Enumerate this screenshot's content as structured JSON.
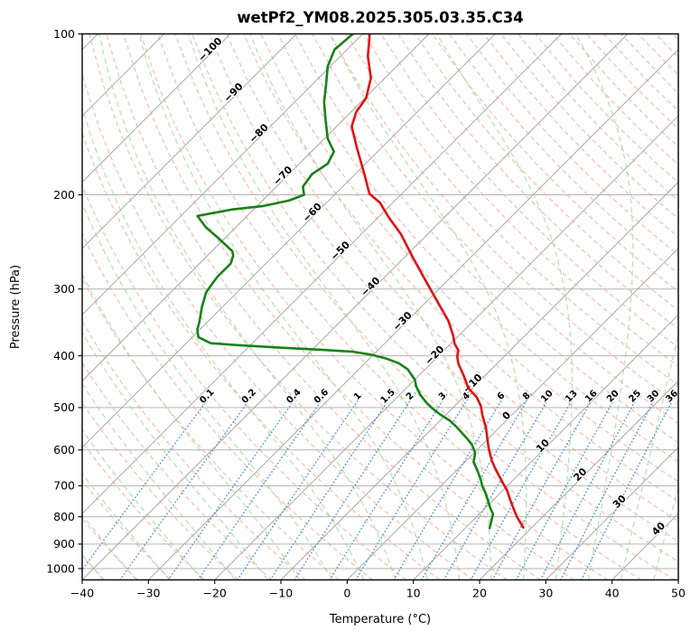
{
  "title": "wetPf2_YM08.2025.305.03.35.C34",
  "axes": {
    "xlabel": "Temperature (°C)",
    "ylabel": "Pressure (hPa)",
    "xlim": [
      -40,
      50
    ],
    "p_top": 100,
    "p_bottom": 1050,
    "x_ticks": [
      -40,
      -30,
      -20,
      -10,
      0,
      10,
      20,
      30,
      40,
      50
    ],
    "p_ticks": [
      100,
      200,
      300,
      400,
      500,
      600,
      700,
      800,
      900,
      1000
    ],
    "skew_degrees": 45
  },
  "background": {
    "isobars": [
      100,
      200,
      300,
      400,
      500,
      600,
      700,
      800,
      900,
      1000
    ],
    "isotherms": {
      "min": -120,
      "max": 50,
      "step": 10
    },
    "dry_adiabats": {
      "min": -55,
      "max": 190,
      "step": 5
    },
    "moist_adiabats": {
      "min": -55,
      "max": 50,
      "step": 5
    },
    "mixing_ratios_g_kg": [
      0.1,
      0.2,
      0.4,
      0.6,
      1,
      1.5,
      2,
      3,
      4,
      6,
      8,
      10,
      13,
      16,
      20,
      25,
      30,
      36
    ],
    "mixing_label_pressure": 480,
    "mixing_lines_top_pressure": 458,
    "isotherm_labels": [
      [
        -100,
        108
      ],
      [
        -90,
        130
      ],
      [
        -80,
        155
      ],
      [
        -70,
        186
      ],
      [
        -60,
        218
      ],
      [
        -50,
        257
      ],
      [
        -40,
        300
      ],
      [
        -30,
        348
      ],
      [
        -20,
        403
      ],
      [
        -10,
        455
      ],
      [
        0,
        523
      ],
      [
        10,
        595
      ],
      [
        20,
        674
      ],
      [
        30,
        757
      ],
      [
        40,
        851
      ]
    ]
  },
  "colors": {
    "isobar": "#b3b3b3",
    "isotherm": "#a8a8a8",
    "dry_adiabat": "#f2997f",
    "moist_adiabat": "#a5d6a2",
    "mixing_ratio": "#4a90d0",
    "label_negative": "#2878be",
    "label_zero": "#8a8a8a",
    "label_positive": "#cc3b33",
    "temperature_curve": "#e01212",
    "dewpoint_curve": "#178217",
    "spine": "#000000"
  },
  "chart_data": {
    "type": "line",
    "subtype": "skew-t-log-p-sounding",
    "title": "wetPf2_YM08.2025.305.03.35.C34",
    "xlabel": "Temperature (°C)",
    "ylabel": "Pressure (hPa)",
    "x_range_C": [
      -40,
      50
    ],
    "pressure_range_hPa": [
      100,
      1050
    ],
    "series": [
      {
        "name": "temperature",
        "color": "#e01212",
        "points_p_hPa_T_C": [
          [
            100,
            -79.0
          ],
          [
            102,
            -78.3
          ],
          [
            110,
            -75.9
          ],
          [
            121,
            -72.1
          ],
          [
            132,
            -69.8
          ],
          [
            140,
            -69.2
          ],
          [
            149,
            -67.7
          ],
          [
            163,
            -63.8
          ],
          [
            183,
            -58.6
          ],
          [
            199,
            -54.9
          ],
          [
            207,
            -51.9
          ],
          [
            220,
            -48.5
          ],
          [
            237,
            -44.0
          ],
          [
            262,
            -38.7
          ],
          [
            292,
            -32.8
          ],
          [
            324,
            -27.1
          ],
          [
            344,
            -23.8
          ],
          [
            367,
            -20.8
          ],
          [
            379,
            -19.5
          ],
          [
            391,
            -17.8
          ],
          [
            401,
            -17.1
          ],
          [
            414,
            -15.8
          ],
          [
            434,
            -13.4
          ],
          [
            460,
            -10.6
          ],
          [
            478,
            -8.0
          ],
          [
            497,
            -6.0
          ],
          [
            517,
            -4.4
          ],
          [
            544,
            -2.1
          ],
          [
            597,
            1.6
          ],
          [
            629,
            3.9
          ],
          [
            653,
            5.8
          ],
          [
            688,
            8.6
          ],
          [
            715,
            10.7
          ],
          [
            743,
            12.5
          ],
          [
            773,
            14.4
          ],
          [
            803,
            16.3
          ],
          [
            838,
            18.7
          ]
        ]
      },
      {
        "name": "dewpoint",
        "color": "#178217",
        "points_p_hPa_T_C": [
          [
            100,
            -81.5
          ],
          [
            107,
            -81.9
          ],
          [
            115,
            -80.4
          ],
          [
            124,
            -78.0
          ],
          [
            134,
            -75.6
          ],
          [
            145,
            -72.6
          ],
          [
            157,
            -69.5
          ],
          [
            166,
            -66.6
          ],
          [
            175,
            -65.7
          ],
          [
            183,
            -66.5
          ],
          [
            193,
            -66.0
          ],
          [
            200,
            -64.6
          ],
          [
            205,
            -66.0
          ],
          [
            210,
            -69.2
          ],
          [
            213,
            -73.2
          ],
          [
            219,
            -77.5
          ],
          [
            230,
            -74.5
          ],
          [
            242,
            -70.7
          ],
          [
            255,
            -66.9
          ],
          [
            260,
            -66.1
          ],
          [
            269,
            -65.3
          ],
          [
            285,
            -65.3
          ],
          [
            304,
            -64.7
          ],
          [
            324,
            -63.1
          ],
          [
            346,
            -61.2
          ],
          [
            357,
            -60.4
          ],
          [
            369,
            -59.1
          ],
          [
            379,
            -56.3
          ],
          [
            382,
            -51.9
          ],
          [
            386,
            -45.5
          ],
          [
            390,
            -38.3
          ],
          [
            393,
            -33.5
          ],
          [
            398,
            -30.4
          ],
          [
            405,
            -27.4
          ],
          [
            413,
            -24.9
          ],
          [
            424,
            -22.6
          ],
          [
            444,
            -19.9
          ],
          [
            456,
            -18.8
          ],
          [
            473,
            -16.9
          ],
          [
            490,
            -14.7
          ],
          [
            503,
            -12.8
          ],
          [
            515,
            -10.9
          ],
          [
            529,
            -8.5
          ],
          [
            543,
            -6.6
          ],
          [
            575,
            -2.8
          ],
          [
            586,
            -1.6
          ],
          [
            608,
            0.2
          ],
          [
            632,
            1.3
          ],
          [
            656,
            3.2
          ],
          [
            681,
            5.0
          ],
          [
            702,
            6.3
          ],
          [
            721,
            7.7
          ],
          [
            743,
            9.1
          ],
          [
            771,
            10.8
          ],
          [
            791,
            12.1
          ],
          [
            815,
            12.9
          ],
          [
            840,
            13.7
          ]
        ]
      }
    ]
  }
}
